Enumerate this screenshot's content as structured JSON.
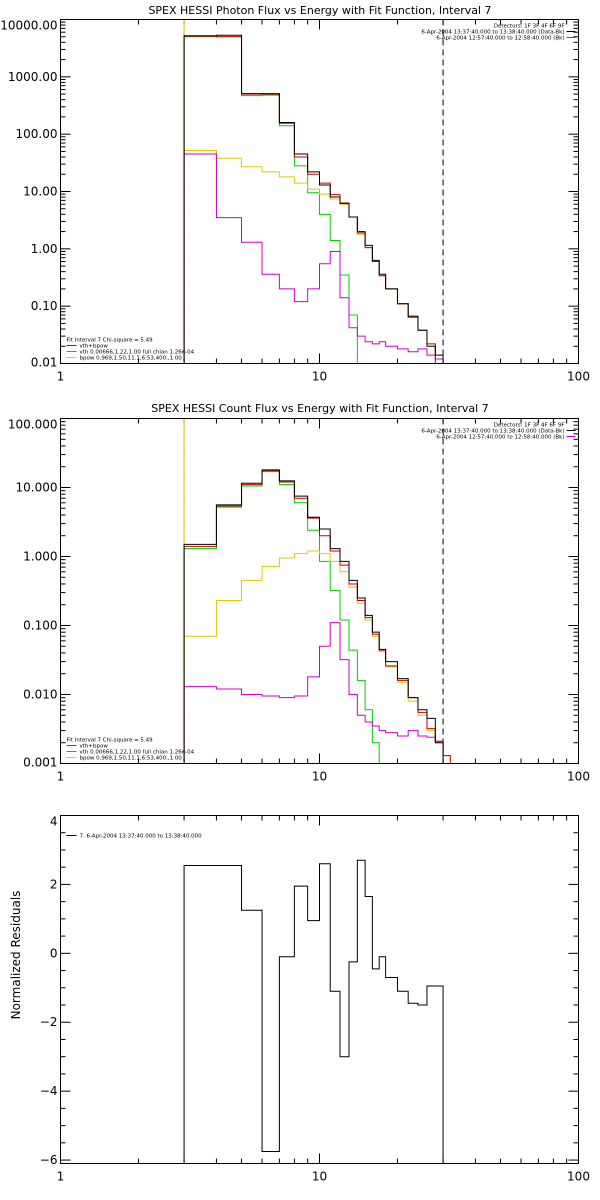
{
  "colors": {
    "total": "#000000",
    "sum": "#cc0000",
    "vth": "#00cc00",
    "bpow": "#e0c800",
    "bk": "#cc00cc",
    "residual": "#000000"
  },
  "chart_data": [
    {
      "type": "line",
      "step": true,
      "title": "SPEX HESSI Photon Flux vs Energy with Fit Function, Interval 7",
      "xscale": "log",
      "yscale": "log",
      "xlim": [
        1,
        100
      ],
      "ylim": [
        0.01,
        10000
      ],
      "xticks": [
        1,
        10,
        100
      ],
      "xtick_labels": [
        "1",
        "10",
        "100"
      ],
      "yticks": [
        0.01,
        0.1,
        1,
        10,
        100,
        1000,
        10000
      ],
      "ytick_labels": [
        "0.01",
        "0.10",
        "1.00",
        "10.00",
        "100.00",
        "1000.00",
        "10000.00"
      ],
      "vlines": [
        {
          "x": 3,
          "style": "dotted",
          "color": "#000000"
        },
        {
          "x": 3,
          "style": "solid",
          "color": "#e0c800"
        },
        {
          "x": 30,
          "style": "dashed",
          "color": "#000000"
        }
      ],
      "header_lines": [
        "Detectors: 1F 3F 4F 6F 9F",
        "6-Apr-2004 13:37:40.000 to 13:38:40.000 (Data-Bk)",
        "6-Apr-2004 12:57:40.000 to 12:58:40.000 (Bk)"
      ],
      "header_swatches": [
        "#000000",
        "#cc00cc"
      ],
      "legend_lines": [
        {
          "text": "Fit Interval 7   Chi-square = 5.49",
          "color": ""
        },
        {
          "text": "vth+bpow",
          "color": "#cc0000"
        },
        {
          "text": "vth 0.00666,1.22,1.00  full chian 1.26e-04",
          "color": "#00cc00"
        },
        {
          "text": "bpow 0.969,1.50,11.1,6.53,400.,1.00",
          "color": "#e0c800"
        }
      ],
      "edges": [
        3,
        4,
        5,
        6,
        7,
        8,
        9,
        10,
        11,
        12,
        13,
        14,
        15,
        16,
        17,
        18,
        20,
        22,
        24,
        26,
        28,
        30
      ],
      "series": [
        {
          "key": "vth",
          "color": "#00cc00",
          "values": [
            5000,
            5000,
            470,
            480,
            140,
            28,
            9.5,
            4,
            1.4,
            0.35,
            0.07,
            0.009,
            null,
            null,
            null,
            null,
            null,
            null,
            null,
            null,
            null
          ]
        },
        {
          "key": "bpow",
          "color": "#e0c800",
          "values": [
            52,
            38,
            27,
            22,
            18,
            14,
            11,
            9,
            7.4,
            6,
            3.6,
            1.8,
            1.05,
            0.6,
            0.34,
            0.2,
            0.11,
            0.064,
            0.038,
            0.022,
            0.01
          ]
        },
        {
          "key": "bk",
          "color": "#cc00cc",
          "values": [
            45,
            3.5,
            1.3,
            0.36,
            0.2,
            0.12,
            0.2,
            0.55,
            0.9,
            0.14,
            0.042,
            0.03,
            0.024,
            0.022,
            0.024,
            0.02,
            0.018,
            0.016,
            0.018,
            0.014,
            0.012
          ]
        },
        {
          "key": "sum",
          "color": "#cc0000",
          "values": [
            5100,
            5000,
            500,
            500,
            155,
            40,
            20,
            14,
            8.8,
            6.3,
            3.6,
            1.9,
            1.05,
            0.6,
            0.34,
            0.2,
            0.11,
            0.064,
            0.038,
            0.022,
            0.01
          ]
        },
        {
          "key": "total",
          "color": "#000000",
          "values": [
            5200,
            5300,
            510,
            510,
            160,
            45,
            22,
            13,
            8,
            6.2,
            3.6,
            2,
            1.15,
            0.63,
            0.36,
            0.2,
            0.11,
            0.067,
            0.038,
            0.02,
            0.014
          ]
        }
      ]
    },
    {
      "type": "line",
      "step": true,
      "title": "SPEX HESSI Count Flux vs Energy with Fit Function, Interval 7",
      "xscale": "log",
      "yscale": "log",
      "xlim": [
        1,
        100
      ],
      "ylim": [
        0.001,
        100
      ],
      "xticks": [
        1,
        10,
        100
      ],
      "xtick_labels": [
        "1",
        "10",
        "100"
      ],
      "yticks": [
        0.001,
        0.01,
        0.1,
        1,
        10,
        100
      ],
      "ytick_labels": [
        "0.001",
        "0.010",
        "0.100",
        "1.000",
        "10.000",
        "100.000"
      ],
      "vlines": [
        {
          "x": 3,
          "style": "dotted",
          "color": "#000000"
        },
        {
          "x": 3,
          "style": "solid",
          "color": "#e0c800"
        },
        {
          "x": 30,
          "style": "dashed",
          "color": "#000000"
        }
      ],
      "header_lines": [
        "Detectors: 1F 3F 4F 6F 9F",
        "6-Apr-2004 13:37:40.000 to 13:38:40.000 (Data-Bk)",
        "6-Apr-2004 12:57:40.000 to 12:58:40.000 (Bk)"
      ],
      "header_swatches": [
        "#000000",
        "#cc00cc"
      ],
      "legend_lines": [
        {
          "text": "Fit Interval 7   Chi-square = 5.49",
          "color": ""
        },
        {
          "text": "vth+bpow",
          "color": "#cc00cc"
        },
        {
          "text": "vth 0.00666,1.22,1.00  full chian 1.26e-04",
          "color": "#00cc00"
        },
        {
          "text": "bpow 0.969,1.50,11.1,6.53,400.,1.00",
          "color": "#e0c800"
        }
      ],
      "edges": [
        3,
        4,
        5,
        6,
        7,
        8,
        9,
        10,
        11,
        12,
        13,
        14,
        15,
        16,
        17,
        18,
        20,
        22,
        24,
        26,
        28,
        30,
        32
      ],
      "series": [
        {
          "key": "vth",
          "color": "#00cc00",
          "values": [
            1.3,
            5.2,
            10.5,
            17,
            11,
            6,
            2.4,
            0.85,
            0.32,
            0.12,
            0.044,
            0.016,
            0.006,
            0.002,
            0.0008,
            null,
            null,
            null,
            null,
            null,
            null,
            null
          ]
        },
        {
          "key": "bpow",
          "color": "#e0c800",
          "values": [
            0.07,
            0.23,
            0.45,
            0.72,
            0.95,
            1.1,
            1.2,
            1.1,
            0.85,
            0.6,
            0.36,
            0.21,
            0.12,
            0.07,
            0.042,
            0.025,
            0.015,
            0.008,
            0.005,
            0.003,
            0.002,
            0.0013
          ]
        },
        {
          "key": "bk",
          "color": "#cc00cc",
          "values": [
            0.013,
            0.012,
            0.01,
            0.0095,
            0.009,
            0.0095,
            0.018,
            0.05,
            0.11,
            0.032,
            0.01,
            0.005,
            0.004,
            0.0035,
            0.003,
            0.0028,
            0.0025,
            0.003,
            0.0025,
            0.0024,
            0.0021,
            null
          ]
        },
        {
          "key": "sum",
          "color": "#cc0000",
          "values": [
            1.4,
            5.4,
            11,
            17.5,
            12,
            7,
            3.6,
            2,
            1.2,
            0.75,
            0.4,
            0.23,
            0.13,
            0.075,
            0.044,
            0.026,
            0.016,
            0.009,
            0.0055,
            0.0032,
            0.0021,
            0.0013
          ]
        },
        {
          "key": "total",
          "color": "#000000",
          "values": [
            1.5,
            5.6,
            11.5,
            18,
            12.5,
            7.5,
            3.7,
            2.5,
            1.3,
            0.85,
            0.45,
            0.25,
            0.14,
            0.08,
            0.045,
            0.03,
            0.017,
            0.009,
            0.006,
            0.0045,
            0.002,
            null
          ]
        }
      ]
    },
    {
      "type": "line",
      "step": true,
      "title": "",
      "xscale": "log",
      "yscale": "linear",
      "xlim": [
        1,
        100
      ],
      "ylim": [
        -6.1,
        4
      ],
      "xticks": [
        1,
        10,
        100
      ],
      "xtick_labels": [
        "1",
        "10",
        "100"
      ],
      "yticks": [
        -6,
        -4,
        -2,
        0,
        2,
        4
      ],
      "ytick_labels": [
        "−6",
        "−4",
        "−2",
        "0",
        "2",
        "4"
      ],
      "ylabel": "Normalized Residuals",
      "legend_lines": [
        {
          "text": "7.  6-Apr-2004 13:37:40.000 to 13:38:40.000",
          "color": "#000000"
        }
      ],
      "edges": [
        3,
        4,
        5,
        6,
        7,
        8,
        9,
        10,
        11,
        12,
        13,
        14,
        15,
        16,
        17,
        18,
        20,
        22,
        24,
        26,
        28,
        30
      ],
      "series": [
        {
          "key": "residual",
          "color": "#000000",
          "values": [
            2.55,
            2.55,
            1.25,
            -5.75,
            -0.1,
            1.95,
            0.95,
            2.6,
            -1.1,
            -3,
            -0.25,
            2.7,
            1.65,
            -0.45,
            -0.1,
            -0.7,
            -1.1,
            -1.45,
            -1.5,
            -0.95,
            -0.95
          ]
        }
      ]
    }
  ]
}
